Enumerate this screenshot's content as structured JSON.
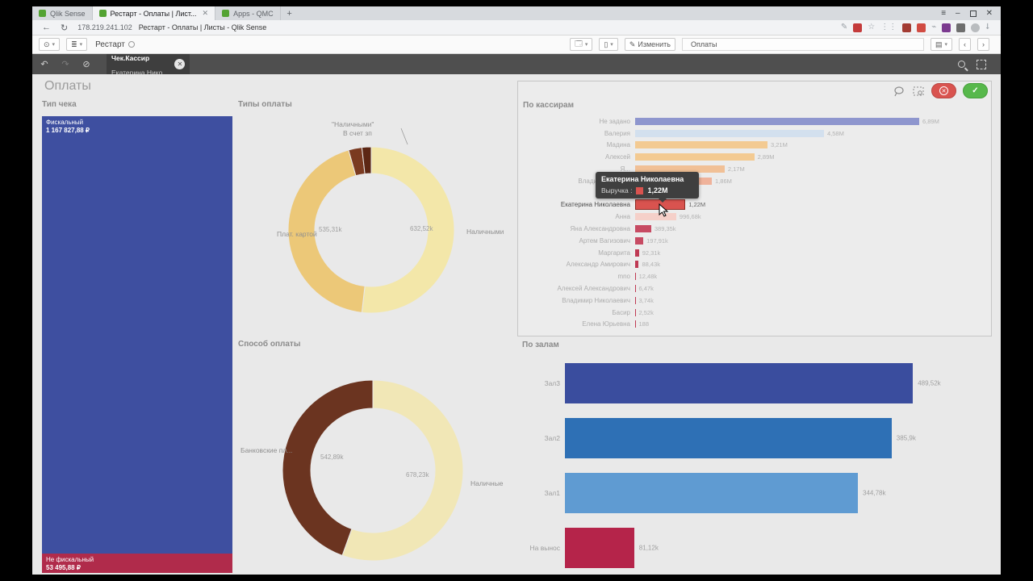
{
  "browser": {
    "tabs": [
      {
        "label": "Qlik Sense",
        "active": false
      },
      {
        "label": "Рестарт - Оплаты | Лист...",
        "active": true,
        "close": "✕"
      },
      {
        "label": "Apps - QMC",
        "active": false
      }
    ],
    "new_tab": "+",
    "url_host": "178.219.241.102",
    "url_title": "Рестарт - Оплаты | Листы - Qlik Sense"
  },
  "app_toolbar": {
    "app_name": "Рестарт",
    "edit_label": "Изменить",
    "sheet_label": "Оплаты"
  },
  "selections_bar": {
    "chip_field": "Чек.Кассир",
    "chip_value": "Екатерина Нико..."
  },
  "sheet": {
    "title": "Оплаты"
  },
  "tooltip": {
    "title": "Екатерина Николаевна",
    "row_label": "Выручка :",
    "row_value": "1,22M",
    "swatch_color": "#d9534f"
  },
  "chart_data": [
    {
      "id": "tip_cheka",
      "type": "treemap",
      "title": "Тип чека",
      "blocks": [
        {
          "label": "Фискальный",
          "value": "1 167 827,88 ₽",
          "color": "#3e4fa0",
          "height_pct": 95.7
        },
        {
          "label": "Не фискальный",
          "value": "53 495,88 ₽",
          "color": "#b02b4b",
          "height_pct": 4.3
        }
      ]
    },
    {
      "id": "tipy_oplaty",
      "type": "donut",
      "title": "Типы оплаты",
      "slices": [
        {
          "label": "Наличными",
          "value": "632,52k",
          "pct": 51.8,
          "color": "#f3e7a9"
        },
        {
          "label": "Плат. картой",
          "value": "535,31k",
          "pct": 43.8,
          "color": "#ecc878"
        },
        {
          "label": "В счет зп",
          "value": "",
          "pct": 2.6,
          "color": "#7a3a20"
        },
        {
          "label": "\"Наличными\"",
          "value": "",
          "pct": 1.8,
          "color": "#5c2714"
        }
      ]
    },
    {
      "id": "sposob_oplaty",
      "type": "donut",
      "title": "Способ оплаты",
      "slices": [
        {
          "label": "Наличные",
          "value": "678,23k",
          "pct": 55.5,
          "color": "#f1e7b6"
        },
        {
          "label": "Банковские пл...",
          "value": "542,89k",
          "pct": 44.5,
          "color": "#6b3420"
        }
      ]
    },
    {
      "id": "po_kassiram",
      "type": "bar",
      "title": "По кассирам",
      "orientation": "horizontal",
      "max_value": 6.89,
      "bars": [
        {
          "label": "Не задано",
          "value": "6,89M",
          "v": 6.89,
          "color": "#8e96ce"
        },
        {
          "label": "Валерия",
          "value": "4,58M",
          "v": 4.58,
          "color": "#d3e0ee"
        },
        {
          "label": "Мадина",
          "value": "3,21M",
          "v": 3.21,
          "color": "#f3ca92"
        },
        {
          "label": "Алексей",
          "value": "2,89M",
          "v": 2.89,
          "color": "#f3ca92"
        },
        {
          "label": "Я...",
          "value": "2,17M",
          "v": 2.17,
          "color": "#f1c096"
        },
        {
          "label": "Владислав Григ...",
          "value": "1,86M",
          "v": 1.86,
          "color": "#efb29a"
        },
        {
          "label": "Юлия Тан...",
          "value": "",
          "v": 1.5,
          "color": "#eda89b"
        },
        {
          "label": "Екатерина Николаевна",
          "value": "1,22M",
          "v": 1.22,
          "color": "#d9534f",
          "selected": true
        },
        {
          "label": "Анна",
          "value": "996,68k",
          "v": 0.997,
          "color": "#f5d0c9"
        },
        {
          "label": "Яна Александровна",
          "value": "389,35k",
          "v": 0.389,
          "color": "#c74b63"
        },
        {
          "label": "Артем Вагизович",
          "value": "197,91k",
          "v": 0.198,
          "color": "#c74b63"
        },
        {
          "label": "Маргарита",
          "value": "92,31k",
          "v": 0.092,
          "color": "#bf3a54"
        },
        {
          "label": "Александр Амирович",
          "value": "88,43k",
          "v": 0.088,
          "color": "#bf3a54"
        },
        {
          "label": "mno",
          "value": "12,48k",
          "v": 0.0125,
          "color": "#bf3a54"
        },
        {
          "label": "Алексей Александрович",
          "value": "6,47k",
          "v": 0.0065,
          "color": "#bf3a54"
        },
        {
          "label": "Владимир Николаевич",
          "value": "3,74k",
          "v": 0.0037,
          "color": "#bf3a54"
        },
        {
          "label": "Басир",
          "value": "2,52k",
          "v": 0.0025,
          "color": "#bf3a54"
        },
        {
          "label": "Елена Юрьевна",
          "value": "188",
          "v": 0.0002,
          "color": "#bf3a54"
        }
      ]
    },
    {
      "id": "po_zalam",
      "type": "bar",
      "title": "По залам",
      "orientation": "horizontal",
      "bars": [
        {
          "label": "Зал3",
          "value": "489,52k",
          "width_pct": 98,
          "color": "#3a4d9e"
        },
        {
          "label": "Зал2",
          "value": "385,9k",
          "width_pct": 92,
          "color": "#2e70b5"
        },
        {
          "label": "Зал1",
          "value": "344,78k",
          "width_pct": 82.5,
          "color": "#5f9bd2"
        },
        {
          "label": "На вынос",
          "value": "81,12k",
          "width_pct": 19.5,
          "color": "#b5244a"
        }
      ]
    }
  ]
}
